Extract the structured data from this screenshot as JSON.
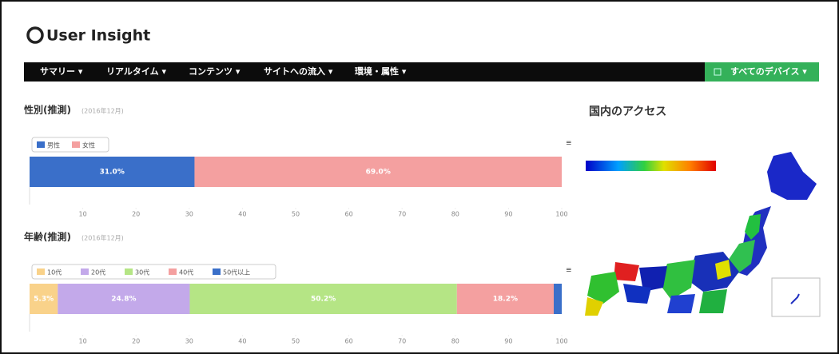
{
  "header": {
    "logo": "User Insight"
  },
  "nav": {
    "items": [
      "サマリー ▾",
      "リアルタイム ▾",
      "コンテンツ ▾",
      "サイトへの流入 ▾",
      "環境・属性 ▾"
    ],
    "device": "すべてのデバイス ▾"
  },
  "chart_data": [
    {
      "type": "stacked-bar",
      "title": "性別(推測)",
      "subtitle": "(2016年12月)",
      "series": [
        {
          "name": "男性",
          "color": "#3a6fc9",
          "values": [
            31.0
          ],
          "value_labels": [
            "31.0%"
          ]
        },
        {
          "name": "女性",
          "color": "#f4a0a0",
          "values": [
            69.0
          ],
          "value_labels": [
            "69.0%"
          ]
        }
      ],
      "xlim": [
        0,
        100
      ],
      "xticks": [
        10,
        20,
        30,
        40,
        50,
        60,
        70,
        80,
        90,
        100
      ]
    },
    {
      "type": "stacked-bar",
      "title": "年齢(推測)",
      "subtitle": "(2016年12月)",
      "series": [
        {
          "name": "10代",
          "color": "#f9d28a",
          "values": [
            5.3
          ],
          "value_labels": [
            "5.3%"
          ]
        },
        {
          "name": "20代",
          "color": "#c3a9ea",
          "values": [
            24.8
          ],
          "value_labels": [
            "24.8%"
          ]
        },
        {
          "name": "30代",
          "color": "#b5e585",
          "values": [
            50.2
          ],
          "value_labels": [
            "50.2%"
          ]
        },
        {
          "name": "40代",
          "color": "#f4a0a0",
          "values": [
            18.2
          ],
          "value_labels": [
            "18.2%"
          ]
        },
        {
          "name": "50代以上",
          "color": "#3a6fc9",
          "values": [
            1.5
          ],
          "value_labels": [
            null
          ]
        }
      ],
      "xlim": [
        0,
        100
      ],
      "xticks": [
        10,
        20,
        30,
        40,
        50,
        60,
        70,
        80,
        90,
        100
      ]
    }
  ],
  "map": {
    "title": "国内のアクセス"
  }
}
